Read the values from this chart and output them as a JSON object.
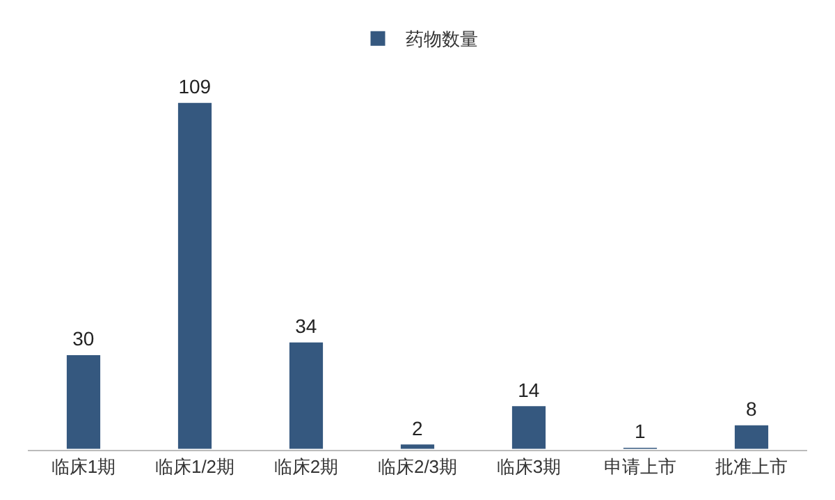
{
  "chart_data": {
    "type": "bar",
    "categories": [
      "临床1期",
      "临床1/2期",
      "临床2期",
      "临床2/3期",
      "临床3期",
      "申请上市",
      "批准上市"
    ],
    "series": [
      {
        "name": "药物数量",
        "color": "#35587f",
        "values": [
          30,
          109,
          34,
          2,
          14,
          1,
          8
        ]
      }
    ],
    "data_labels": true,
    "legend": "top",
    "tick_labels": "x"
  }
}
